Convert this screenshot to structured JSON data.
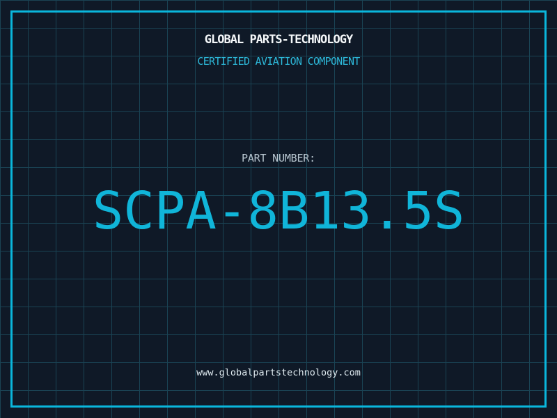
{
  "header": {
    "title": "GLOBAL PARTS-TECHNOLOGY",
    "subtitle": "CERTIFIED AVIATION COMPONENT"
  },
  "part": {
    "label": "PART NUMBER:",
    "number": "SCPA-8B13.5S"
  },
  "footer": {
    "url": "www.globalpartstechnology.com"
  },
  "colors": {
    "background": "#0f1927",
    "grid": "#1a4354",
    "frame": "#0ab6dc",
    "title": "#f4f7f9",
    "subtitle": "#2db9da",
    "label": "#b9c7d1",
    "number": "#10b5d9",
    "url": "#dde8ee"
  }
}
